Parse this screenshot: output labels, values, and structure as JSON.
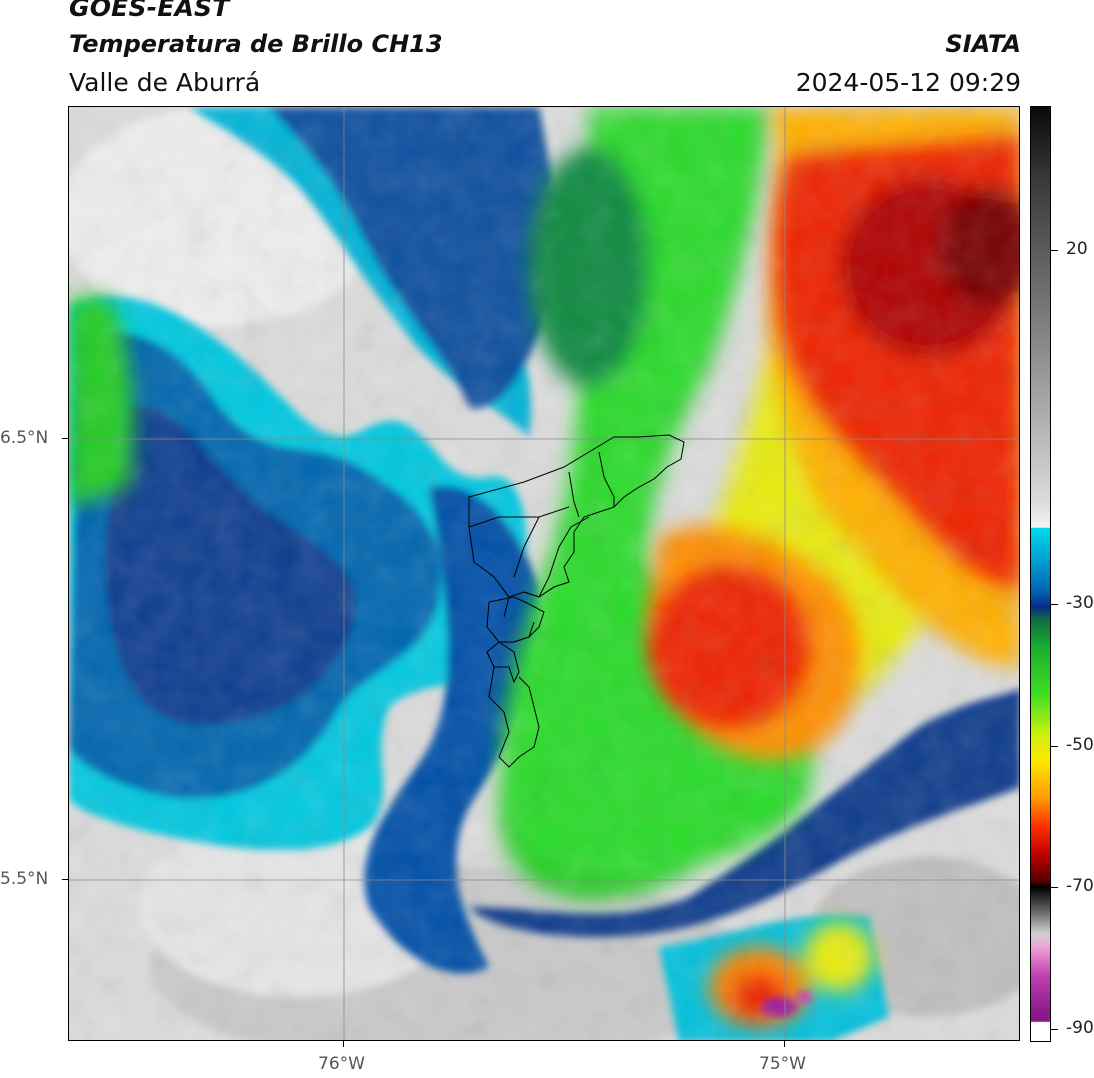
{
  "header": {
    "satellite": "GOES-EAST",
    "product": "Temperatura de Brillo CH13",
    "region": "Valle de Aburrá",
    "source": "SIATA",
    "datetime": "2024-05-12 09:29"
  },
  "map": {
    "latitude_labels": [
      "6.5°N",
      "5.5°N"
    ],
    "longitude_labels": [
      "76°W",
      "75°W"
    ],
    "basemap": "brightness temperature field over Valle de Aburrá with municipal boundary outlines",
    "colors": {
      "warm_clear": "#cc0000",
      "mid": "#00cc00",
      "cold_cloud": "#0a2a8a",
      "very_cold": "#e8e8e8",
      "extreme": "#8a0a8a"
    }
  },
  "colorbar": {
    "tick_labels": [
      "20",
      "-30",
      "-50",
      "-70",
      "-90"
    ],
    "unit_hint": ""
  }
}
